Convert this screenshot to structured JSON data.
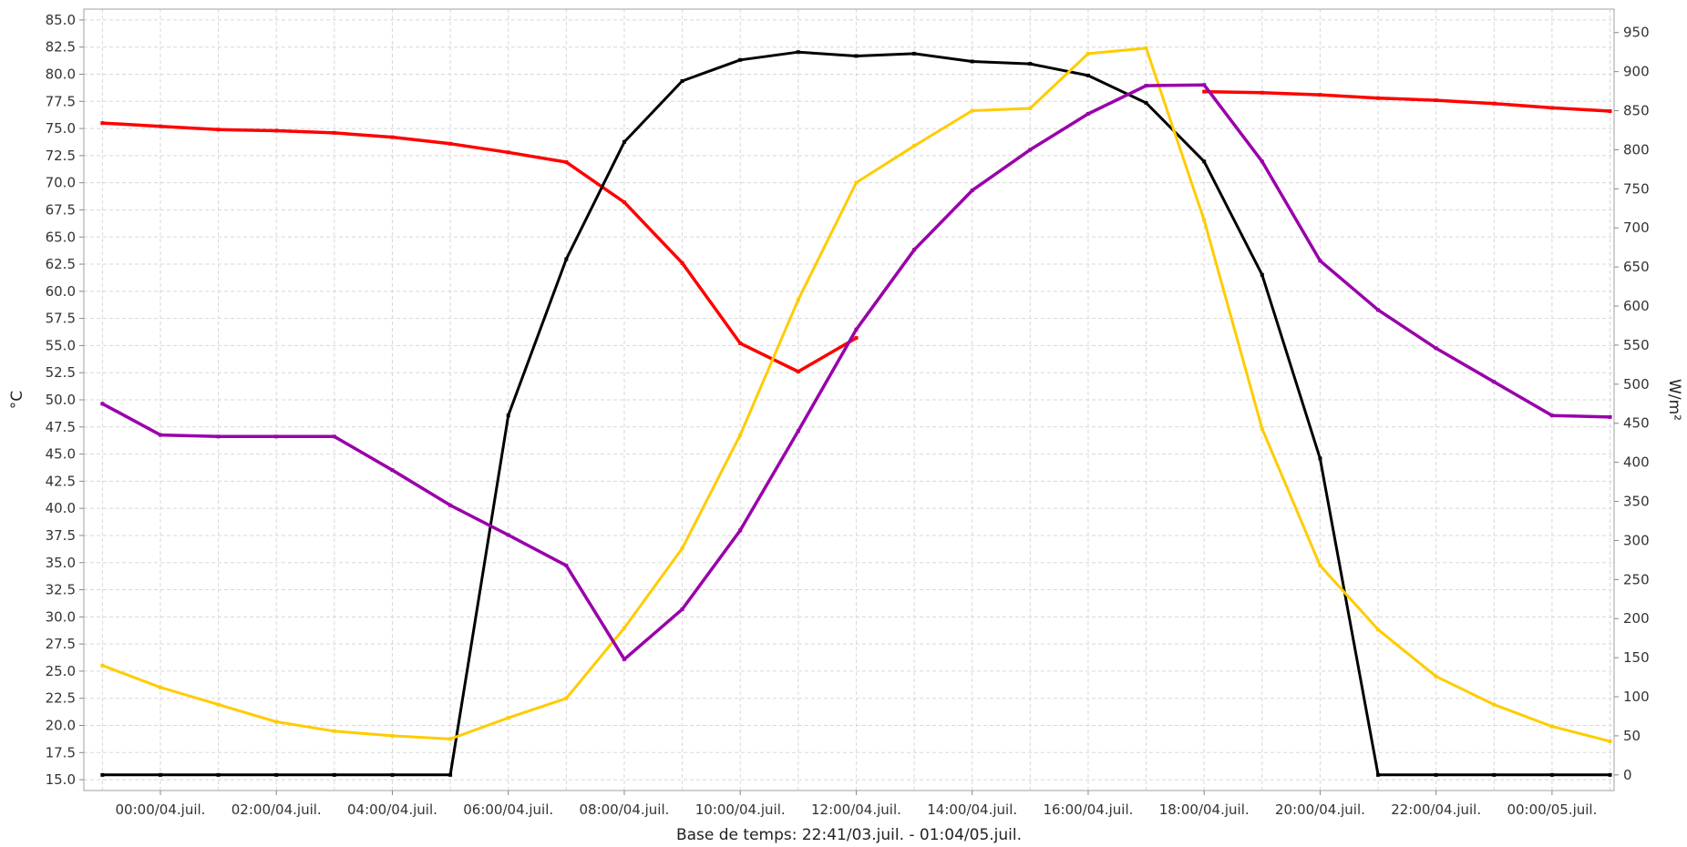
{
  "chart_data": {
    "type": "line",
    "title": "",
    "xlabel": "Base de temps: 22:41/03.juil. - 01:04/05.juil.",
    "ylabel_left": "°C",
    "ylabel_right": "W/m²",
    "ylim_left": [
      14.0,
      86.0
    ],
    "ylim_right": [
      -20,
      980
    ],
    "left_ticks": [
      "15.0",
      "17.5",
      "20.0",
      "22.5",
      "25.0",
      "27.5",
      "30.0",
      "32.5",
      "35.0",
      "37.5",
      "40.0",
      "42.5",
      "45.0",
      "47.5",
      "50.0",
      "52.5",
      "55.0",
      "57.5",
      "60.0",
      "62.5",
      "65.0",
      "67.5",
      "70.0",
      "72.5",
      "75.0",
      "77.5",
      "80.0",
      "82.5",
      "85.0"
    ],
    "right_ticks": [
      "0",
      "50",
      "100",
      "150",
      "200",
      "250",
      "300",
      "350",
      "400",
      "450",
      "500",
      "550",
      "600",
      "650",
      "700",
      "750",
      "800",
      "850",
      "900",
      "950"
    ],
    "x_tick_labels": [
      "00:00/04.juil.",
      "02:00/04.juil.",
      "04:00/04.juil.",
      "06:00/04.juil.",
      "08:00/04.juil.",
      "10:00/04.juil.",
      "12:00/04.juil.",
      "14:00/04.juil.",
      "16:00/04.juil.",
      "18:00/04.juil.",
      "20:00/04.juil.",
      "22:00/04.juil.",
      "00:00/05.juil."
    ],
    "x_tick_hours": [
      0,
      2,
      4,
      6,
      8,
      10,
      12,
      14,
      16,
      18,
      20,
      22,
      24
    ],
    "x_range_hours": [
      -1.32,
      25.07
    ],
    "x_hours": [
      -1,
      0,
      1,
      2,
      3,
      4,
      5,
      6,
      7,
      8,
      9,
      10,
      11,
      12,
      13,
      14,
      15,
      16,
      17,
      18,
      19,
      20,
      21,
      22,
      23,
      24,
      25
    ],
    "grid": true,
    "legend": "none",
    "series": [
      {
        "color": "#ff0000",
        "axis": "left",
        "width": 3.5,
        "values": [
          75.5,
          75.2,
          74.9,
          74.8,
          74.6,
          74.2,
          73.6,
          72.8,
          71.9,
          68.2,
          62.6,
          55.2,
          52.6,
          55.7,
          null,
          null,
          null,
          null,
          null,
          78.4,
          78.3,
          78.1,
          77.8,
          77.6,
          77.3,
          76.9,
          76.6
        ]
      },
      {
        "color": "#000000",
        "axis": "right",
        "width": 3,
        "values": [
          0,
          0,
          0,
          0,
          0,
          0,
          0,
          460,
          660,
          810,
          888,
          915,
          925,
          920,
          923,
          913,
          910,
          895,
          860,
          785,
          640,
          405,
          0,
          0,
          0,
          0,
          0
        ]
      },
      {
        "color": "#ffcc00",
        "axis": "right",
        "width": 3,
        "values": [
          140,
          112,
          90,
          68,
          56,
          50,
          46,
          73,
          98,
          188,
          290,
          435,
          608,
          758,
          805,
          850,
          853,
          923,
          930,
          710,
          443,
          268,
          186,
          126,
          90,
          62,
          43
        ]
      },
      {
        "color": "#9900aa",
        "axis": "right",
        "width": 3.5,
        "values": [
          475,
          435,
          433,
          433,
          433,
          390,
          345,
          307,
          268,
          148,
          212,
          313,
          440,
          570,
          672,
          748,
          800,
          846,
          882,
          883,
          785,
          658,
          595,
          546,
          503,
          460,
          458
        ]
      }
    ]
  }
}
